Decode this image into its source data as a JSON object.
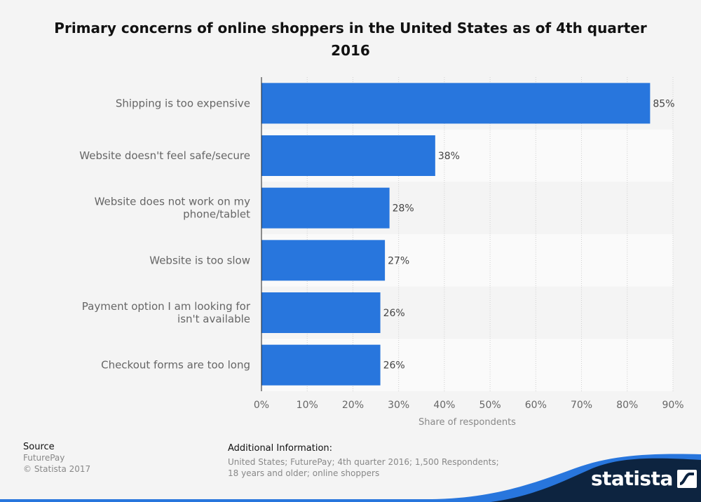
{
  "chart_data": {
    "type": "bar",
    "orientation": "horizontal",
    "title": "Primary concerns of online shoppers in the United States as of 4th quarter 2016",
    "categories": [
      "Shipping is too expensive",
      "Website doesn't feel safe/secure",
      "Website does not work on my phone/tablet",
      "Website is too slow",
      "Payment option I am looking for isn't available",
      "Checkout forms are too long"
    ],
    "values": [
      85,
      38,
      28,
      27,
      26,
      26
    ],
    "value_labels": [
      "85%",
      "38%",
      "28%",
      "27%",
      "26%",
      "26%"
    ],
    "xlabel": "Share of respondents",
    "xlim": [
      0,
      90
    ],
    "xticks": [
      0,
      10,
      20,
      30,
      40,
      50,
      60,
      70,
      80,
      90
    ],
    "xtick_labels": [
      "0%",
      "10%",
      "20%",
      "30%",
      "40%",
      "50%",
      "60%",
      "70%",
      "80%",
      "90%"
    ],
    "grid": true,
    "bar_color": "#2876dd"
  },
  "footer": {
    "source_heading": "Source",
    "source_lines": [
      "FuturePay",
      "© Statista 2017"
    ],
    "info_heading": "Additional Information:",
    "info_lines": [
      "United States; FuturePay; 4th quarter 2016; 1,500 Respondents;",
      "18 years and older; online shoppers"
    ]
  },
  "brand": {
    "name": "statista",
    "colors": {
      "dark": "#0d2440",
      "accent": "#2876dd"
    }
  }
}
